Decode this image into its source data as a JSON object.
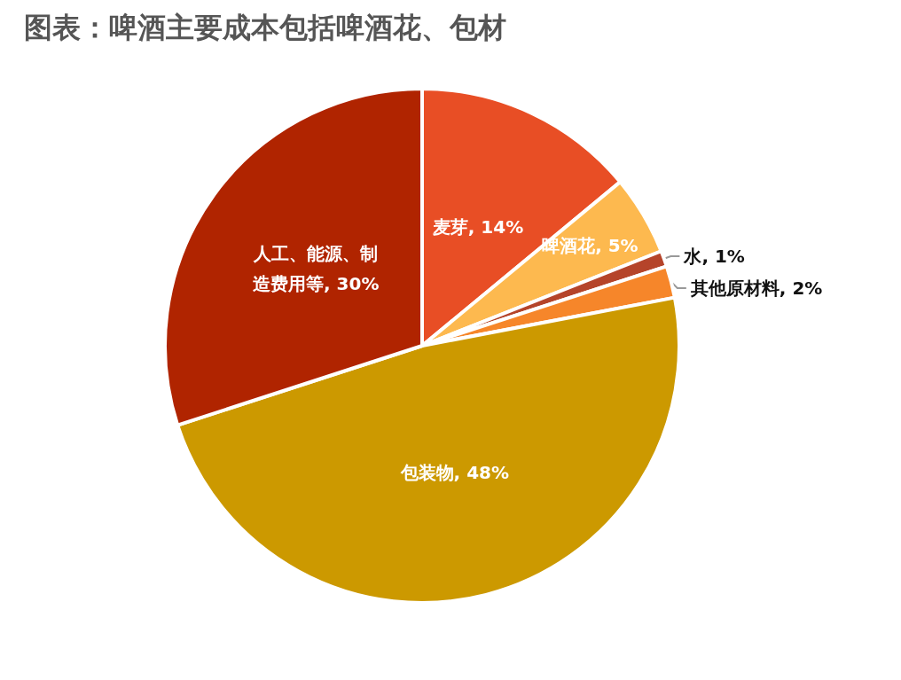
{
  "chart_data": {
    "type": "pie",
    "title": "图表：啤酒主要成本包括啤酒花、包材",
    "categories": [
      "麦芽",
      "啤酒花",
      "水",
      "其他原材料",
      "包装物",
      "人工、能源、制造费用等"
    ],
    "values": [
      14,
      5,
      1,
      2,
      48,
      30
    ],
    "value_labels": [
      "14%",
      "5%",
      "1%",
      "2%",
      "48%",
      "30%"
    ],
    "colors": [
      "#e84e25",
      "#fdb94f",
      "#b5442a",
      "#f6862a",
      "#cc9900",
      "#b02400"
    ],
    "legend": false
  }
}
